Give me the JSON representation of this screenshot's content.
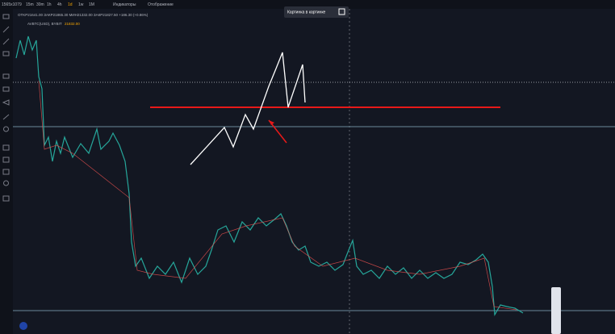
{
  "toolbar": {
    "resolution": "1565x1079",
    "timeframes": [
      "15m",
      "30m",
      "1h",
      "4h",
      "1d",
      "1w",
      "1M"
    ],
    "indicators": "Индикаторы",
    "display": "Отображение"
  },
  "pip_button": "Картинка в картинке",
  "legend": {
    "ohlc": "OTKP21641.00 ЗАКР21865.30 МИН21332.00 ЗАКР21827.50 +186.30 (+0.86%)",
    "symbol": "AVBTC(USD), BYBIT",
    "price": "21832.00"
  }
}
